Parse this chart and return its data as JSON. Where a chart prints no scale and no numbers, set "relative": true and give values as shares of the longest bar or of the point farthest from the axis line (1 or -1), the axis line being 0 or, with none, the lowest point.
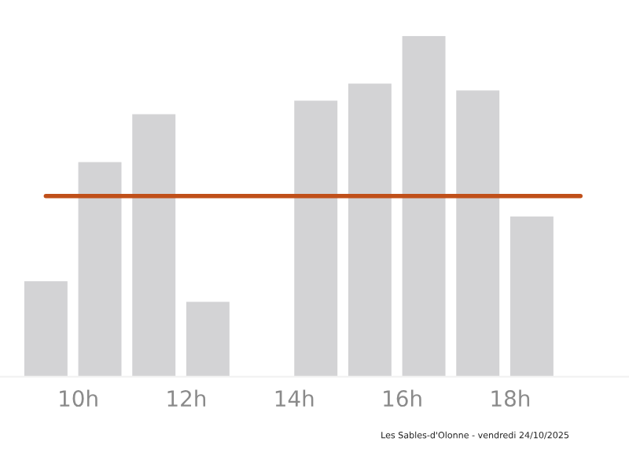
{
  "chart_data": {
    "type": "bar",
    "relative": true,
    "x": [
      9.4,
      10.4,
      11.4,
      12.4,
      14.4,
      15.4,
      16.4,
      17.4,
      18.4
    ],
    "series": [
      {
        "color": "#d3d3d5",
        "values": [
          0.28,
          0.63,
          0.77,
          0.22,
          0.81,
          0.86,
          1,
          0.84,
          0.47
        ]
      },
      {
        "type": "line",
        "color": "#c0501a",
        "x": [
          9.4,
          19.3
        ],
        "values": [
          0.53,
          0.53
        ]
      }
    ],
    "xlim": [
      8.55,
      20.2
    ],
    "xticks": [
      {
        "value": 10,
        "label": "10h"
      },
      {
        "value": 12,
        "label": "12h"
      },
      {
        "value": 14,
        "label": "14h"
      },
      {
        "value": 16,
        "label": "16h"
      },
      {
        "value": 18,
        "label": "18h"
      }
    ],
    "grid": false,
    "legend": false,
    "annotations": [
      "Les Sables-d'Olonne - vendredi 24/10/2025"
    ]
  }
}
